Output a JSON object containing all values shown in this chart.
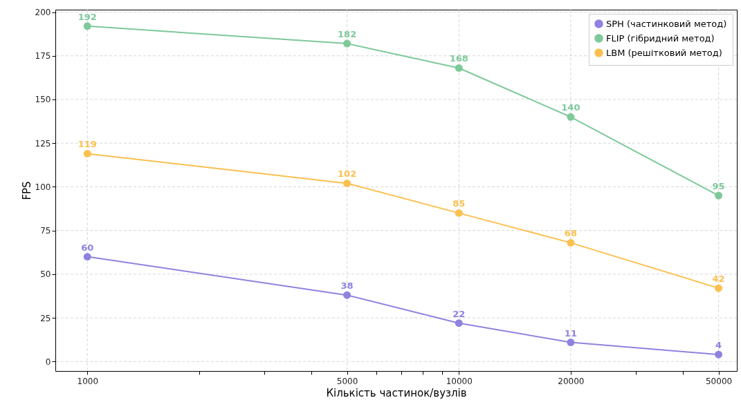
{
  "chart_data": {
    "type": "line",
    "xlabel": "Кількість частинок/вузлів",
    "ylabel": "FPS",
    "x": [
      1000,
      5000,
      10000,
      20000,
      50000
    ],
    "log": "x",
    "xlim": [
      820,
      56000
    ],
    "ylim": [
      -5.4,
      201.4
    ],
    "xticks": [
      1000,
      {
        "value": 2000,
        "label": null
      },
      {
        "value": 3000,
        "label": null
      },
      {
        "value": 4000,
        "label": null
      },
      5000,
      {
        "value": 6000,
        "label": null
      },
      {
        "value": 7000,
        "label": null
      },
      {
        "value": 8000,
        "label": null
      },
      {
        "value": 9000,
        "label": null
      },
      10000,
      20000,
      {
        "value": 30000,
        "label": null
      },
      {
        "value": 40000,
        "label": null
      },
      50000
    ],
    "yticks": [
      0,
      25,
      50,
      75,
      100,
      125,
      150,
      175,
      200
    ],
    "series": [
      {
        "name": "SPH (частинковий метод)",
        "color": "#8e83e0",
        "values": [
          60,
          38,
          22,
          11,
          4
        ]
      },
      {
        "name": "FLIP (гібридний метод)",
        "color": "#7dc99a",
        "values": [
          192,
          182,
          168,
          140,
          95
        ]
      },
      {
        "name": "LBM (решітковий метод)",
        "color": "#fbc04f",
        "values": [
          119,
          102,
          85,
          68,
          42
        ]
      }
    ],
    "grid": true,
    "legend": "top right",
    "marker": "circle",
    "line_style": "solid",
    "data_labels": true
  }
}
